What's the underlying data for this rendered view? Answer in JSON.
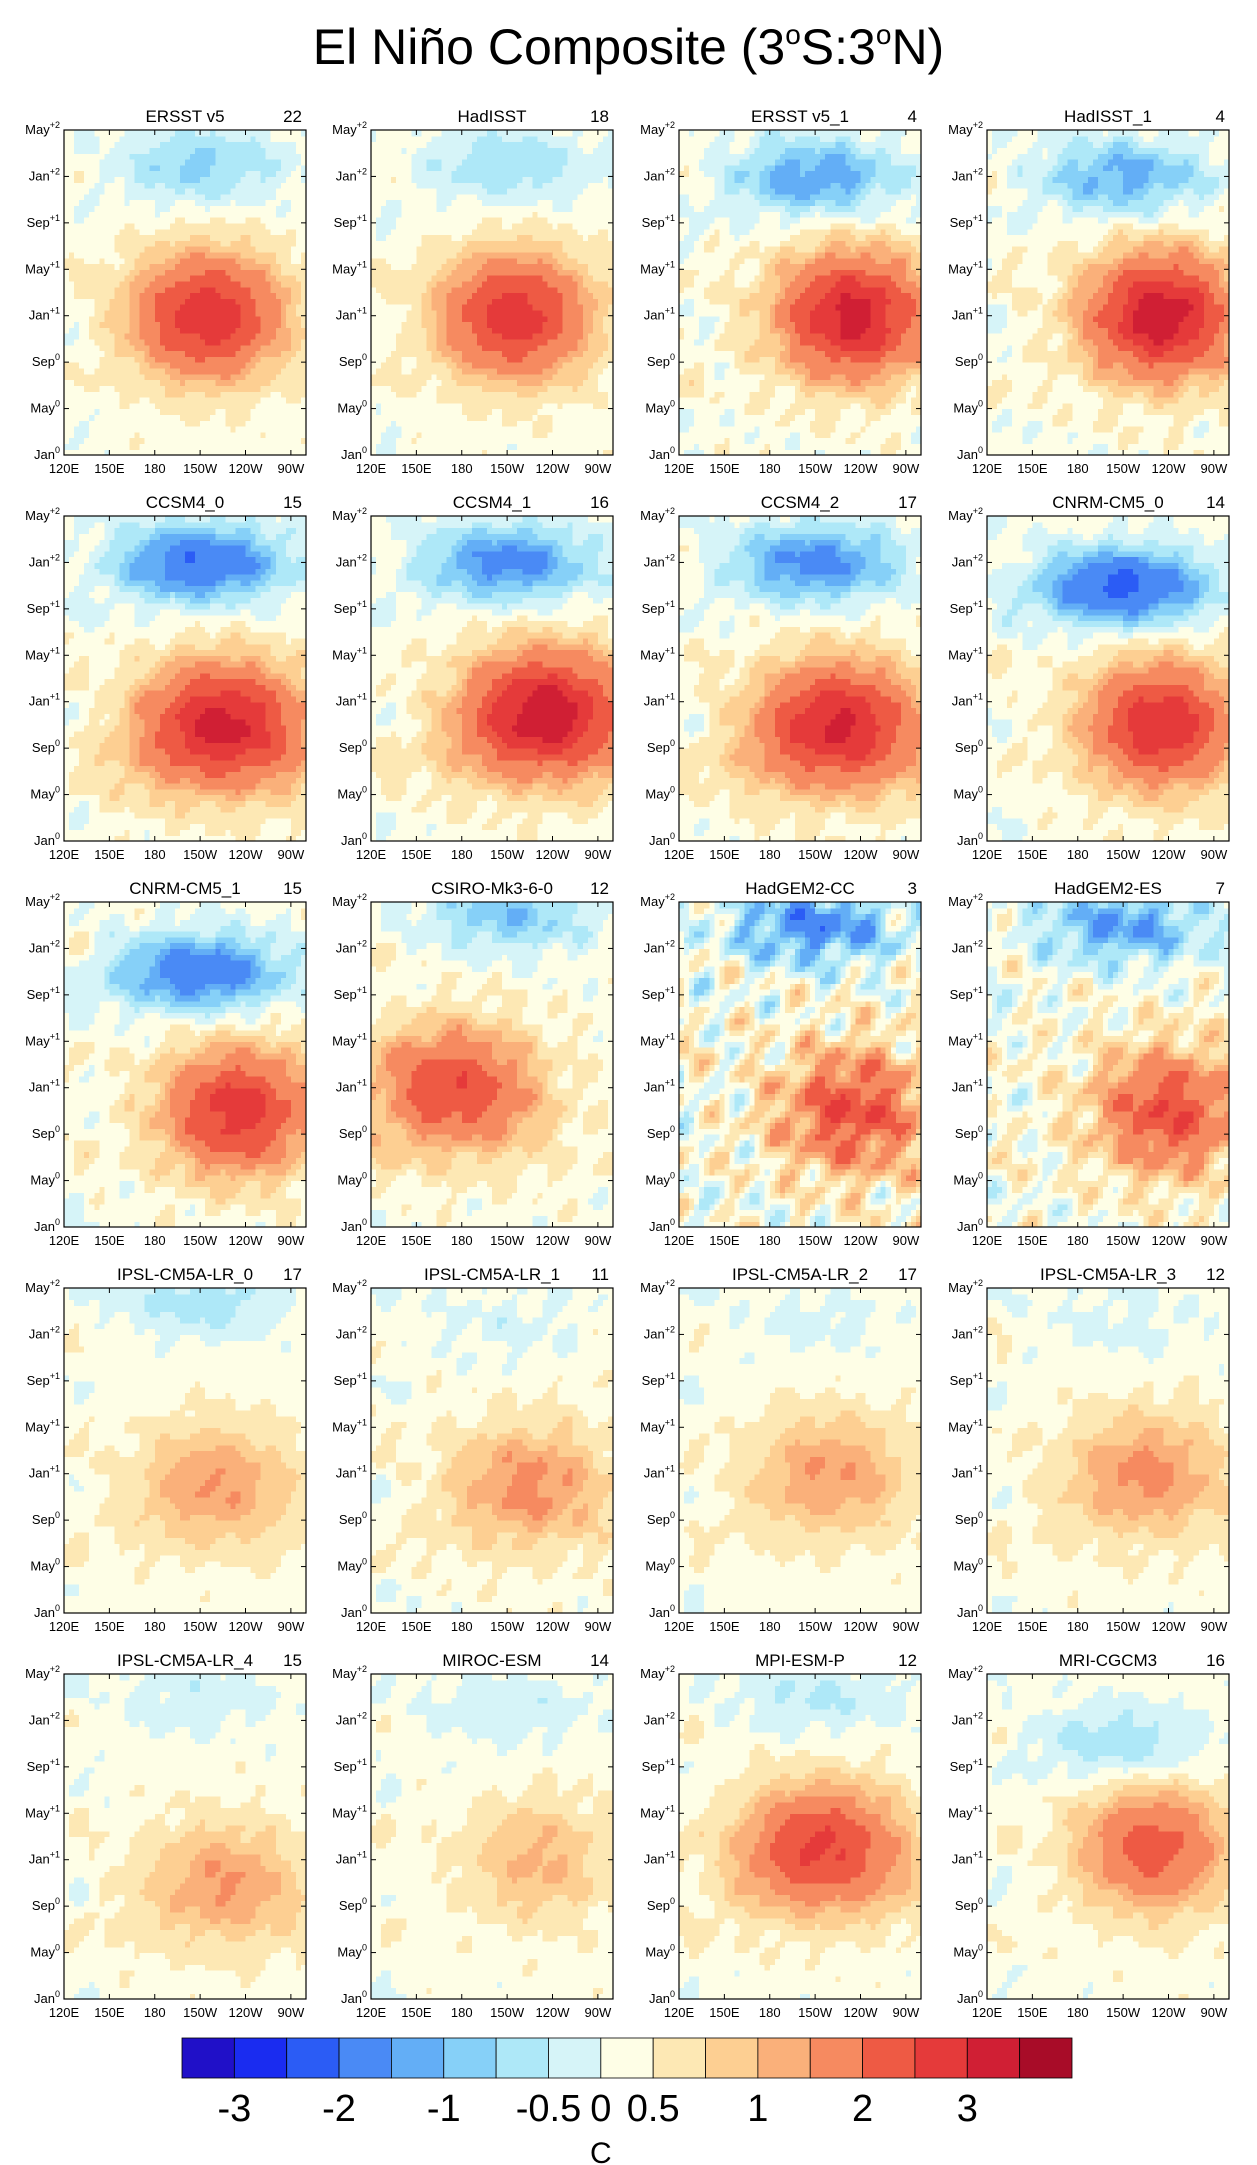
{
  "figure": {
    "title_main": "El Niño Composite (3",
    "title_deg1": "o",
    "title_mid": "S:3",
    "title_deg2": "o",
    "title_end": "N)"
  },
  "chart_data": {
    "type": "heatmap",
    "description_units": "SST anomaly (C), Hovmoller longitude vs time",
    "xlabel": "",
    "ylabel": "",
    "x_ticks": [
      "120E",
      "150E",
      "180",
      "150W",
      "120W",
      "90W"
    ],
    "y_ticks": [
      {
        "base": "Jan",
        "sup": "0"
      },
      {
        "base": "May",
        "sup": "0"
      },
      {
        "base": "Sep",
        "sup": "0"
      },
      {
        "base": "Jan",
        "sup": "+1"
      },
      {
        "base": "May",
        "sup": "+1"
      },
      {
        "base": "Sep",
        "sup": "+1"
      },
      {
        "base": "Jan",
        "sup": "+2"
      },
      {
        "base": "May",
        "sup": "+2"
      }
    ],
    "xlim_deg_east": [
      120,
      280
    ],
    "ylim_months": [
      0,
      28
    ],
    "panels": [
      {
        "name": "ERSST v5",
        "count": "22",
        "amp": 2.3,
        "cx": 215,
        "cy": 12,
        "coldAmp": 0.7,
        "ccy": 25,
        "wedge": false,
        "noise": 0.15
      },
      {
        "name": "HadISST",
        "count": "18",
        "amp": 2.2,
        "cx": 215,
        "cy": 12,
        "coldAmp": 0.6,
        "ccy": 25,
        "wedge": false,
        "noise": 0.15
      },
      {
        "name": "ERSST v5_1",
        "count": "4",
        "amp": 2.6,
        "cx": 235,
        "cy": 12,
        "coldAmp": 1.1,
        "ccy": 24,
        "wedge": false,
        "noise": 0.25
      },
      {
        "name": "HadISST_1",
        "count": "4",
        "amp": 2.7,
        "cx": 235,
        "cy": 12,
        "coldAmp": 1.0,
        "ccy": 24,
        "wedge": false,
        "noise": 0.25
      },
      {
        "name": "CCSM4_0",
        "count": "15",
        "amp": 2.6,
        "cx": 225,
        "cy": 10,
        "coldAmp": 1.6,
        "ccy": 24,
        "wedge": true,
        "noise": 0.2
      },
      {
        "name": "CCSM4_1",
        "count": "16",
        "amp": 2.8,
        "cx": 235,
        "cy": 11,
        "coldAmp": 1.3,
        "ccy": 24,
        "wedge": true,
        "noise": 0.2
      },
      {
        "name": "CCSM4_2",
        "count": "17",
        "amp": 2.5,
        "cx": 225,
        "cy": 10,
        "coldAmp": 1.3,
        "ccy": 24,
        "wedge": true,
        "noise": 0.2
      },
      {
        "name": "CNRM-CM5_0",
        "count": "14",
        "amp": 2.3,
        "cx": 235,
        "cy": 10,
        "coldAmp": 1.8,
        "ccy": 22,
        "wedge": false,
        "noise": 0.2
      },
      {
        "name": "CNRM-CM5_1",
        "count": "15",
        "amp": 2.2,
        "cx": 235,
        "cy": 10,
        "coldAmp": 1.5,
        "ccy": 22,
        "wedge": false,
        "noise": 0.25
      },
      {
        "name": "CSIRO-Mk3-6-0",
        "count": "12",
        "amp": 1.8,
        "cx": 175,
        "cy": 12,
        "coldAmp": 0.8,
        "ccy": 27,
        "wedge": true,
        "noise": 0.25
      },
      {
        "name": "HadGEM2-CC",
        "count": "3",
        "amp": 1.8,
        "cx": 235,
        "cy": 10,
        "coldAmp": 1.3,
        "ccy": 26,
        "wedge": false,
        "noise": 0.7
      },
      {
        "name": "HadGEM2-ES",
        "count": "7",
        "amp": 1.8,
        "cx": 240,
        "cy": 10,
        "coldAmp": 1.1,
        "ccy": 26,
        "wedge": false,
        "noise": 0.5
      },
      {
        "name": "IPSL-CM5A-LR_0",
        "count": "17",
        "amp": 0.9,
        "cx": 220,
        "cy": 11,
        "coldAmp": 0.5,
        "ccy": 27,
        "wedge": true,
        "noise": 0.12
      },
      {
        "name": "IPSL-CM5A-LR_1",
        "count": "11",
        "amp": 1.0,
        "cx": 225,
        "cy": 11,
        "coldAmp": 0.2,
        "ccy": 25,
        "wedge": true,
        "noise": 0.2
      },
      {
        "name": "IPSL-CM5A-LR_2",
        "count": "17",
        "amp": 0.9,
        "cx": 220,
        "cy": 12,
        "coldAmp": 0.2,
        "ccy": 25,
        "wedge": true,
        "noise": 0.12
      },
      {
        "name": "IPSL-CM5A-LR_3",
        "count": "12",
        "amp": 1.0,
        "cx": 225,
        "cy": 12,
        "coldAmp": 0.2,
        "ccy": 25,
        "wedge": true,
        "noise": 0.15
      },
      {
        "name": "IPSL-CM5A-LR_4",
        "count": "15",
        "amp": 0.9,
        "cx": 225,
        "cy": 10,
        "coldAmp": 0.3,
        "ccy": 26,
        "wedge": true,
        "noise": 0.15
      },
      {
        "name": "MIROC-ESM",
        "count": "14",
        "amp": 0.7,
        "cx": 230,
        "cy": 12,
        "coldAmp": 0.3,
        "ccy": 25,
        "wedge": false,
        "noise": 0.15
      },
      {
        "name": "MPI-ESM-P",
        "count": "12",
        "amp": 2.0,
        "cx": 215,
        "cy": 13,
        "coldAmp": 0.4,
        "ccy": 26,
        "wedge": true,
        "noise": 0.15
      },
      {
        "name": "MRI-CGCM3",
        "count": "16",
        "amp": 1.6,
        "cx": 230,
        "cy": 13,
        "coldAmp": 0.6,
        "ccy": 22,
        "wedge": false,
        "noise": 0.15
      }
    ],
    "levels": [
      -3,
      -2.5,
      -2,
      -1.5,
      -1,
      -0.75,
      -0.5,
      -0.25,
      0,
      0.25,
      0.5,
      0.75,
      1,
      1.5,
      2,
      2.5,
      3
    ],
    "colors": [
      "#2010c8",
      "#1a2cf0",
      "#2b5cf5",
      "#4a8af5",
      "#63aef6",
      "#86d0f8",
      "#aee8f8",
      "#d6f4f8",
      "#fefee6",
      "#fde8b4",
      "#fdcf92",
      "#fab07a",
      "#f68a60",
      "#ee5a44",
      "#e53a3a",
      "#d01f34",
      "#a80c28"
    ],
    "colorbar": {
      "labels": [
        "-3",
        "-2",
        "-1",
        "-0.5",
        "0",
        "0.5",
        "1",
        "2",
        "3"
      ],
      "units": "C"
    }
  }
}
